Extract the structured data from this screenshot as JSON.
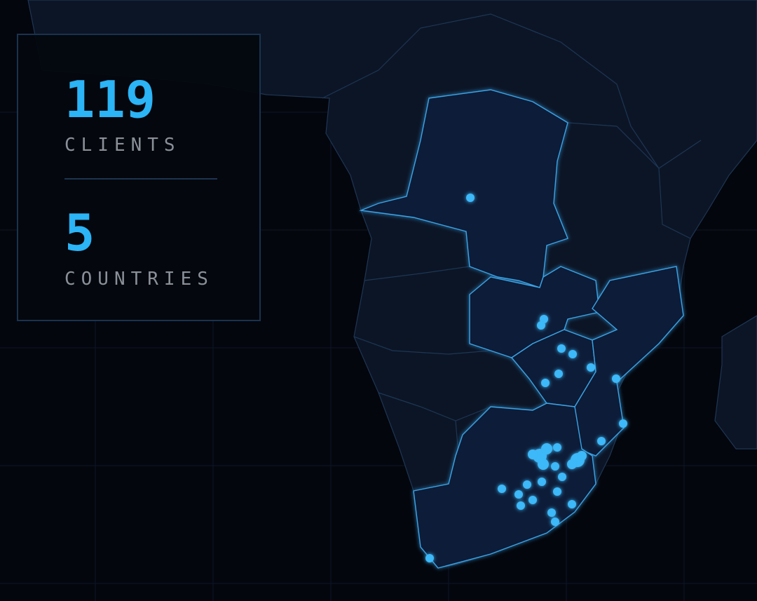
{
  "stats": {
    "clients": {
      "value": 119,
      "label": "CLIENTS"
    },
    "countries": {
      "value": 5,
      "label": "COUNTRIES"
    }
  }
}
